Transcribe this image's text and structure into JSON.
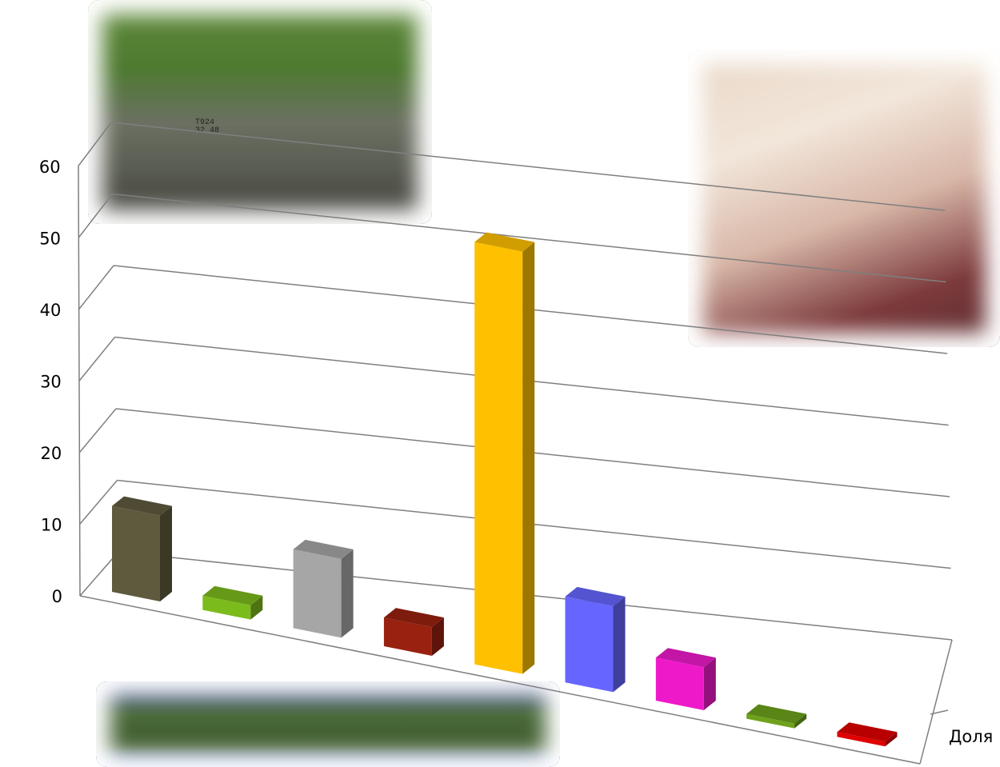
{
  "colors": {
    "grid": "#7f7f7f",
    "background": "#ffffff"
  },
  "photos": {
    "roadwork": {
      "plate_top": "Т924",
      "plate_bottom": "32 48"
    },
    "classroom": {},
    "stage": {}
  },
  "chart_data": {
    "type": "bar",
    "style": "3d-column",
    "title": "",
    "xlabel": "",
    "ylabel": "",
    "ylim": [
      0,
      60
    ],
    "ytick_step": 10,
    "grid": true,
    "legend": "right",
    "y_ticks": [
      "0",
      "10",
      "20",
      "30",
      "40",
      "50",
      "60"
    ],
    "series_label": "Доля",
    "values": [
      12,
      2,
      11,
      4,
      59,
      12,
      6,
      0.5,
      0.5
    ],
    "bar_colors": [
      "#5f5a3e",
      "#7cbb1c",
      "#a6a6a6",
      "#982110",
      "#ffc000",
      "#6666ff",
      "#ee1aca",
      "#6ea21c",
      "#e00000"
    ]
  }
}
